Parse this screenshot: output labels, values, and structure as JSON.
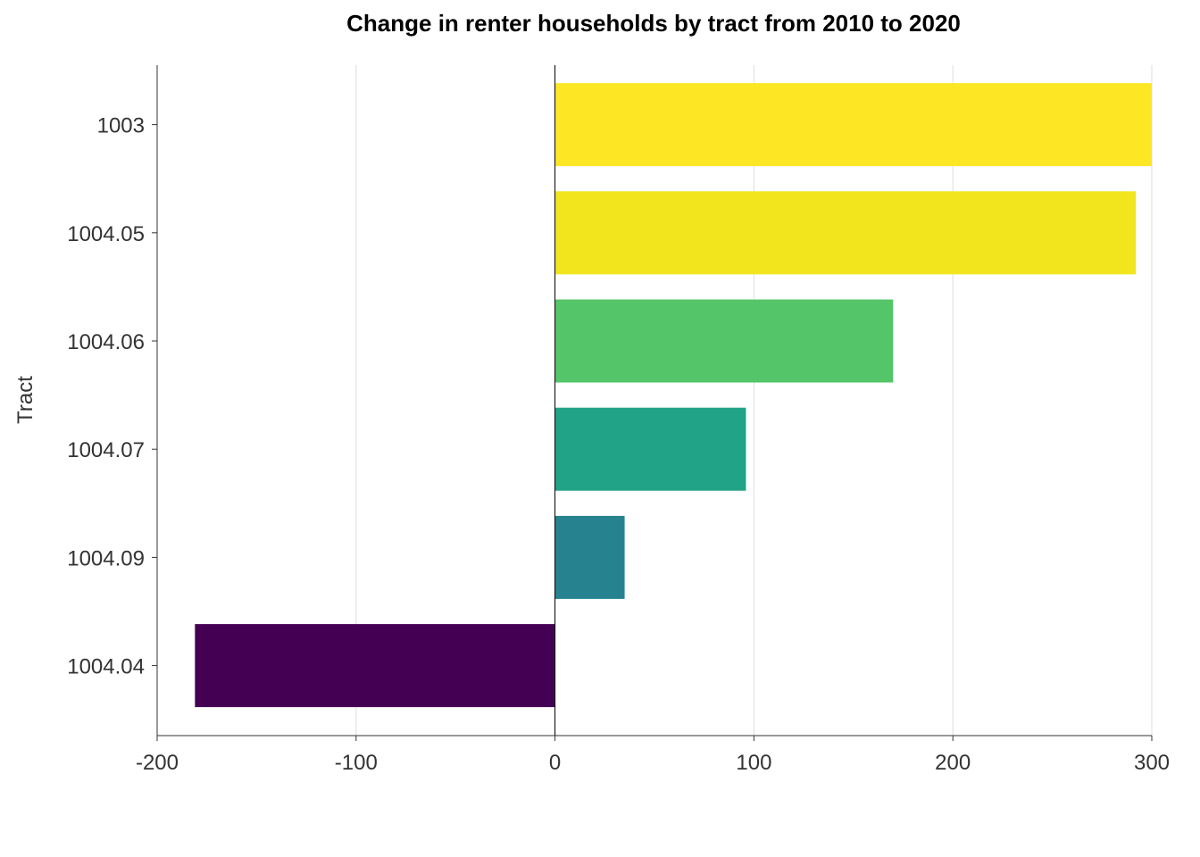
{
  "chart_data": {
    "type": "bar",
    "orientation": "horizontal",
    "title": "Change in renter households by tract from 2010 to 2020",
    "xlabel": "",
    "ylabel": "Tract",
    "categories": [
      "1003",
      "1004.05",
      "1004.06",
      "1004.07",
      "1004.09",
      "1004.04"
    ],
    "values": [
      300,
      292,
      170,
      96,
      35,
      -181
    ],
    "colors": [
      "#FDE725",
      "#F2E51D",
      "#54C568",
      "#20A386",
      "#26828E",
      "#440154"
    ],
    "xlim": [
      -200,
      300
    ],
    "xticks": [
      -200,
      -100,
      0,
      100,
      200,
      300
    ],
    "xtick_labels": [
      "-200",
      "-100",
      "0",
      "100",
      "200",
      "300"
    ],
    "grid": "vertical major gridlines",
    "legend": "none"
  }
}
